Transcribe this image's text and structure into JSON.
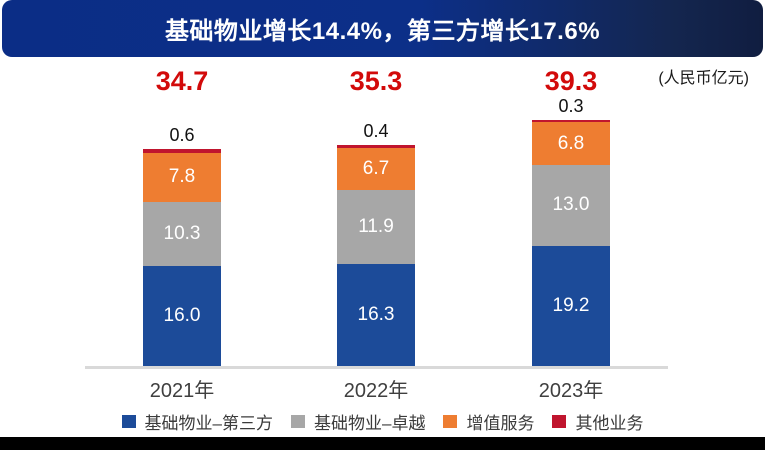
{
  "header": {
    "title": "基础物业增长14.4%，第三方增长17.6%"
  },
  "unit_note": "(人民币亿元)",
  "colors": {
    "banner_blue_left": "#0b2d86",
    "banner_blue_right": "#101d40",
    "total_text_red": "#d20a0a",
    "axis_gray": "#d9d9d9",
    "footer_black": "#000000"
  },
  "chart_data": {
    "type": "bar",
    "stacked": true,
    "title": "基础物业增长14.4%，第三方增长17.6%",
    "unit": "人民币亿元",
    "categories": [
      "2021年",
      "2022年",
      "2023年"
    ],
    "series": [
      {
        "name": "基础物业–第三方",
        "color": "#1c4b99",
        "values": [
          16.0,
          16.3,
          19.2
        ]
      },
      {
        "name": "基础物业–卓越",
        "color": "#a7a7a7",
        "values": [
          10.3,
          11.9,
          13.0
        ]
      },
      {
        "name": "增值服务",
        "color": "#ee7d31",
        "values": [
          7.8,
          6.7,
          6.8
        ]
      },
      {
        "name": "其他业务",
        "color": "#c0152e",
        "values": [
          0.6,
          0.4,
          0.3
        ]
      }
    ],
    "totals": [
      34.7,
      35.3,
      39.3
    ],
    "ylabel": "",
    "xlabel": "",
    "legend_position": "bottom",
    "grid": false
  }
}
